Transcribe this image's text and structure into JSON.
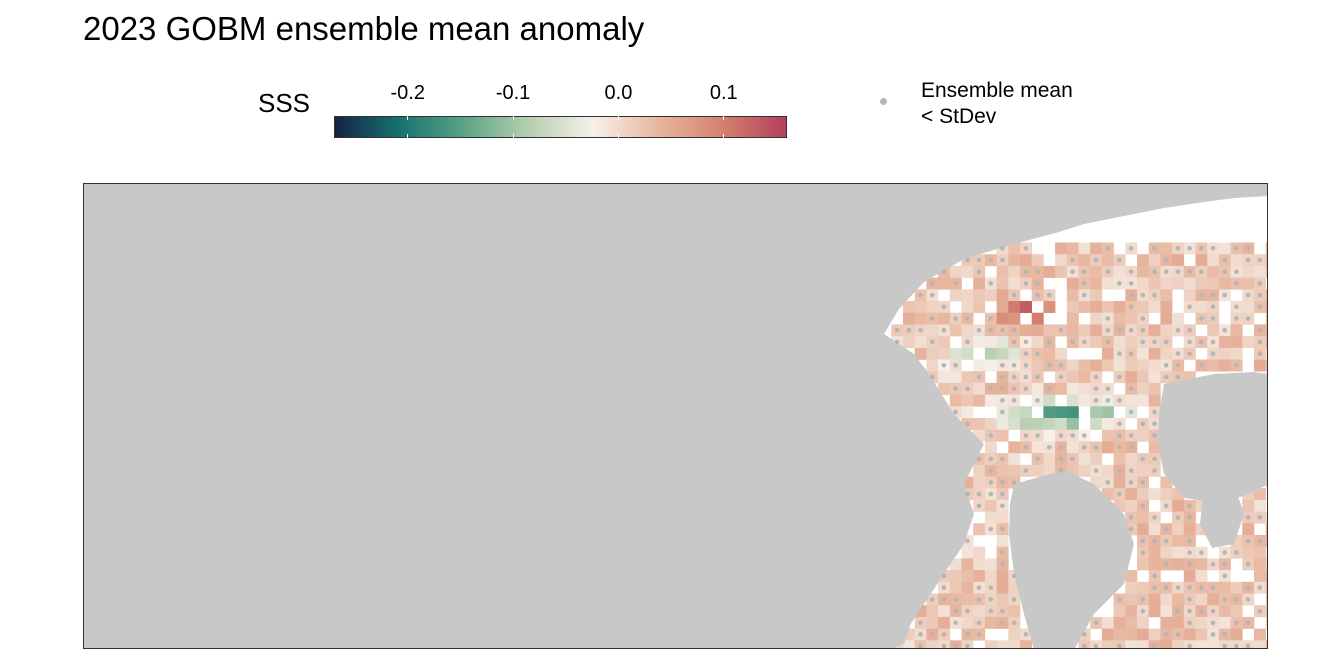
{
  "title": "2023 GOBM ensemble mean anomaly",
  "legend": {
    "variable": "SSS",
    "ticks": [
      {
        "value": -0.2,
        "label": "-0.2"
      },
      {
        "value": -0.1,
        "label": "-0.1"
      },
      {
        "value": 0.0,
        "label": "0.0"
      },
      {
        "value": 0.1,
        "label": "0.1"
      }
    ],
    "range": [
      -0.27,
      0.16
    ],
    "palette": [
      "#152347",
      "#16736f",
      "#5aa384",
      "#b4ceae",
      "#f6f1ea",
      "#e8b7a0",
      "#d4826f",
      "#b33f5e"
    ],
    "significance_line1": "Ensemble mean",
    "significance_line2": "< StDev",
    "significance_color": "#b5b5b5"
  },
  "map": {
    "land_color": "#c8c8c8",
    "ocean_nodata_color": "#ffffff"
  }
}
